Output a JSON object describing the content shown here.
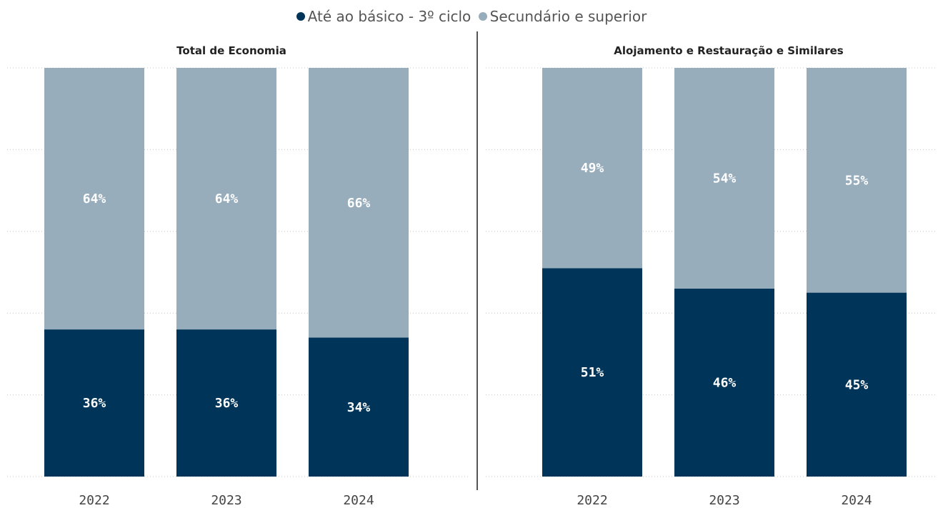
{
  "legend": {
    "items": [
      {
        "label": "Até ao básico - 3º ciclo",
        "color": "#003559"
      },
      {
        "label": "Secundário e superior",
        "color": "#97adbc"
      }
    ]
  },
  "chart_data": [
    {
      "type": "bar",
      "stacked": true,
      "normalized_percent": true,
      "title": "Total de Economia",
      "categories": [
        "2022",
        "2023",
        "2024"
      ],
      "series": [
        {
          "name": "Até ao básico - 3º ciclo",
          "color": "#003559",
          "values": [
            36,
            36,
            34
          ],
          "labels": [
            "36%",
            "36%",
            "34%"
          ]
        },
        {
          "name": "Secundário e superior",
          "color": "#97adbc",
          "values": [
            64,
            64,
            66
          ],
          "labels": [
            "64%",
            "64%",
            "66%"
          ]
        }
      ],
      "ylim": [
        0,
        100
      ],
      "grid": true,
      "legend_position": "top-center"
    },
    {
      "type": "bar",
      "stacked": true,
      "normalized_percent": true,
      "title": "Alojamento e Restauração e Similares",
      "categories": [
        "2022",
        "2023",
        "2024"
      ],
      "series": [
        {
          "name": "Até ao básico - 3º ciclo",
          "color": "#003559",
          "values": [
            51,
            46,
            45
          ],
          "labels": [
            "51%",
            "46%",
            "45%"
          ]
        },
        {
          "name": "Secundário e superior",
          "color": "#97adbc",
          "values": [
            49,
            54,
            55
          ],
          "labels": [
            "49%",
            "54%",
            "55%"
          ]
        }
      ],
      "ylim": [
        0,
        100
      ],
      "grid": true,
      "legend_position": "top-center"
    }
  ]
}
